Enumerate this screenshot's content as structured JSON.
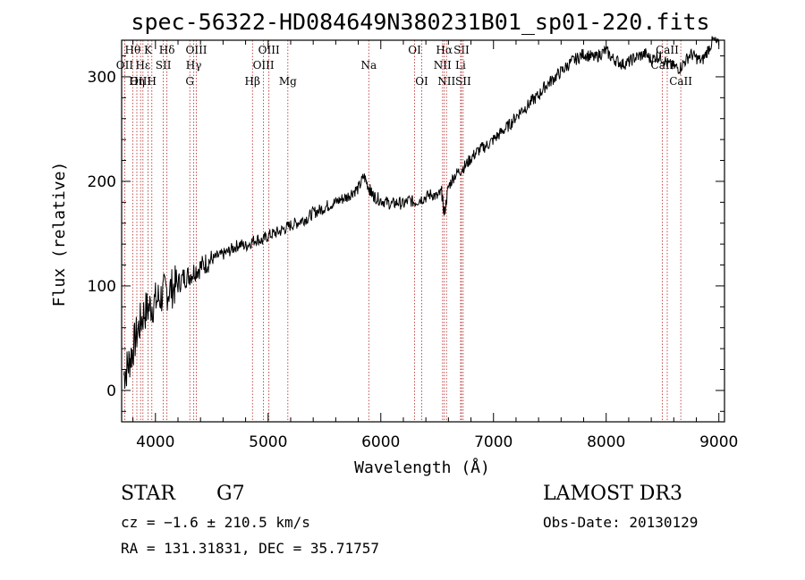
{
  "chart_data": {
    "type": "line",
    "title": "spec-56322-HD084649N380231B01_sp01-220.fits",
    "xlabel": "Wavelength (Å)",
    "ylabel": "Flux (relative)",
    "xlim": [
      3700,
      9050
    ],
    "ylim": [
      -30,
      335
    ],
    "x_ticks": [
      4000,
      5000,
      6000,
      7000,
      8000,
      9000
    ],
    "x_tick_labels": [
      "4000",
      "5000",
      "6000",
      "7000",
      "8000",
      "9000"
    ],
    "y_ticks": [
      0,
      100,
      200,
      300
    ],
    "y_tick_labels": [
      "0",
      "100",
      "200",
      "300"
    ],
    "series": [
      {
        "name": "flux",
        "x": [
          3720,
          3760,
          3800,
          3850,
          3900,
          3950,
          4000,
          4050,
          4100,
          4150,
          4200,
          4250,
          4300,
          4350,
          4400,
          4450,
          4500,
          4550,
          4600,
          4650,
          4700,
          4750,
          4800,
          4850,
          4900,
          4950,
          5000,
          5050,
          5100,
          5150,
          5200,
          5250,
          5300,
          5350,
          5400,
          5450,
          5500,
          5550,
          5600,
          5650,
          5700,
          5750,
          5800,
          5850,
          5890,
          5920,
          5950,
          6000,
          6050,
          6100,
          6150,
          6200,
          6250,
          6300,
          6350,
          6400,
          6450,
          6500,
          6540,
          6563,
          6600,
          6650,
          6700,
          6750,
          6800,
          6850,
          6900,
          6950,
          7000,
          7050,
          7100,
          7150,
          7200,
          7250,
          7300,
          7350,
          7400,
          7450,
          7500,
          7550,
          7600,
          7650,
          7700,
          7750,
          7800,
          7850,
          7900,
          7950,
          8000,
          8050,
          8100,
          8150,
          8200,
          8250,
          8300,
          8350,
          8400,
          8450,
          8500,
          8550,
          8600,
          8650,
          8700,
          8750,
          8800,
          8850,
          8900,
          8950,
          9000
        ],
        "y": [
          15,
          25,
          40,
          60,
          75,
          80,
          85,
          90,
          95,
          98,
          102,
          108,
          110,
          115,
          118,
          122,
          125,
          128,
          130,
          133,
          137,
          140,
          138,
          142,
          145,
          143,
          148,
          150,
          152,
          155,
          158,
          160,
          163,
          165,
          170,
          172,
          175,
          178,
          180,
          183,
          185,
          190,
          193,
          205,
          195,
          188,
          185,
          182,
          180,
          178,
          180,
          178,
          182,
          180,
          183,
          185,
          188,
          185,
          190,
          168,
          195,
          205,
          210,
          215,
          222,
          228,
          232,
          235,
          240,
          245,
          250,
          255,
          262,
          268,
          272,
          278,
          282,
          290,
          295,
          300,
          305,
          310,
          315,
          318,
          322,
          320,
          318,
          322,
          325,
          318,
          315,
          312,
          314,
          318,
          320,
          322,
          316,
          320,
          318,
          312,
          310,
          308,
          315,
          322,
          318,
          315,
          325,
          335,
          330
        ]
      }
    ],
    "spectral_lines": [
      {
        "label": "Hθ",
        "x": 3798,
        "row": 0
      },
      {
        "label": "Hη",
        "x": 3835,
        "row": 2
      },
      {
        "label": "Hε",
        "x": 3889,
        "row": 1
      },
      {
        "label": "OII",
        "x": 3727,
        "row": 1
      },
      {
        "label": "OIII",
        "x": 3868,
        "row": 2
      },
      {
        "label": "K",
        "x": 3934,
        "row": 0
      },
      {
        "label": "H",
        "x": 3968,
        "row": 2
      },
      {
        "label": "SII",
        "x": 4070,
        "row": 1
      },
      {
        "label": "Hδ",
        "x": 4102,
        "row": 0
      },
      {
        "label": "G",
        "x": 4305,
        "row": 2
      },
      {
        "label": "Hγ",
        "x": 4340,
        "row": 1
      },
      {
        "label": "OIII",
        "x": 4363,
        "row": 0
      },
      {
        "label": "Hβ",
        "x": 4861,
        "row": 2
      },
      {
        "label": "OIII",
        "x": 4959,
        "row": 1
      },
      {
        "label": "OIII",
        "x": 5007,
        "row": 0
      },
      {
        "label": "Mg",
        "x": 5175,
        "row": 2
      },
      {
        "label": "Na",
        "x": 5893,
        "row": 1
      },
      {
        "label": "OI",
        "x": 6300,
        "row": 0
      },
      {
        "label": "OI",
        "x": 6363,
        "row": 2
      },
      {
        "label": "NII",
        "x": 6548,
        "row": 1
      },
      {
        "label": "Hα",
        "x": 6563,
        "row": 0
      },
      {
        "label": "NII",
        "x": 6583,
        "row": 2
      },
      {
        "label": "Li",
        "x": 6708,
        "row": 1
      },
      {
        "label": "SII",
        "x": 6716,
        "row": 0
      },
      {
        "label": "SII",
        "x": 6731,
        "row": 2
      },
      {
        "label": "CaII",
        "x": 8498,
        "row": 1
      },
      {
        "label": "CaII",
        "x": 8542,
        "row": 0
      },
      {
        "label": "CaII",
        "x": 8662,
        "row": 2
      }
    ]
  },
  "info": {
    "class": "STAR",
    "subclass": "G7",
    "survey": "LAMOST DR3",
    "redshift": "cz = −1.6 ± 210.5 km/s",
    "obs_date": "Obs-Date: 20130129",
    "coords": "RA = 131.31831, DEC =  35.71757"
  },
  "colors": {
    "spectrum": "#000000",
    "line_markers": "#b22222"
  }
}
